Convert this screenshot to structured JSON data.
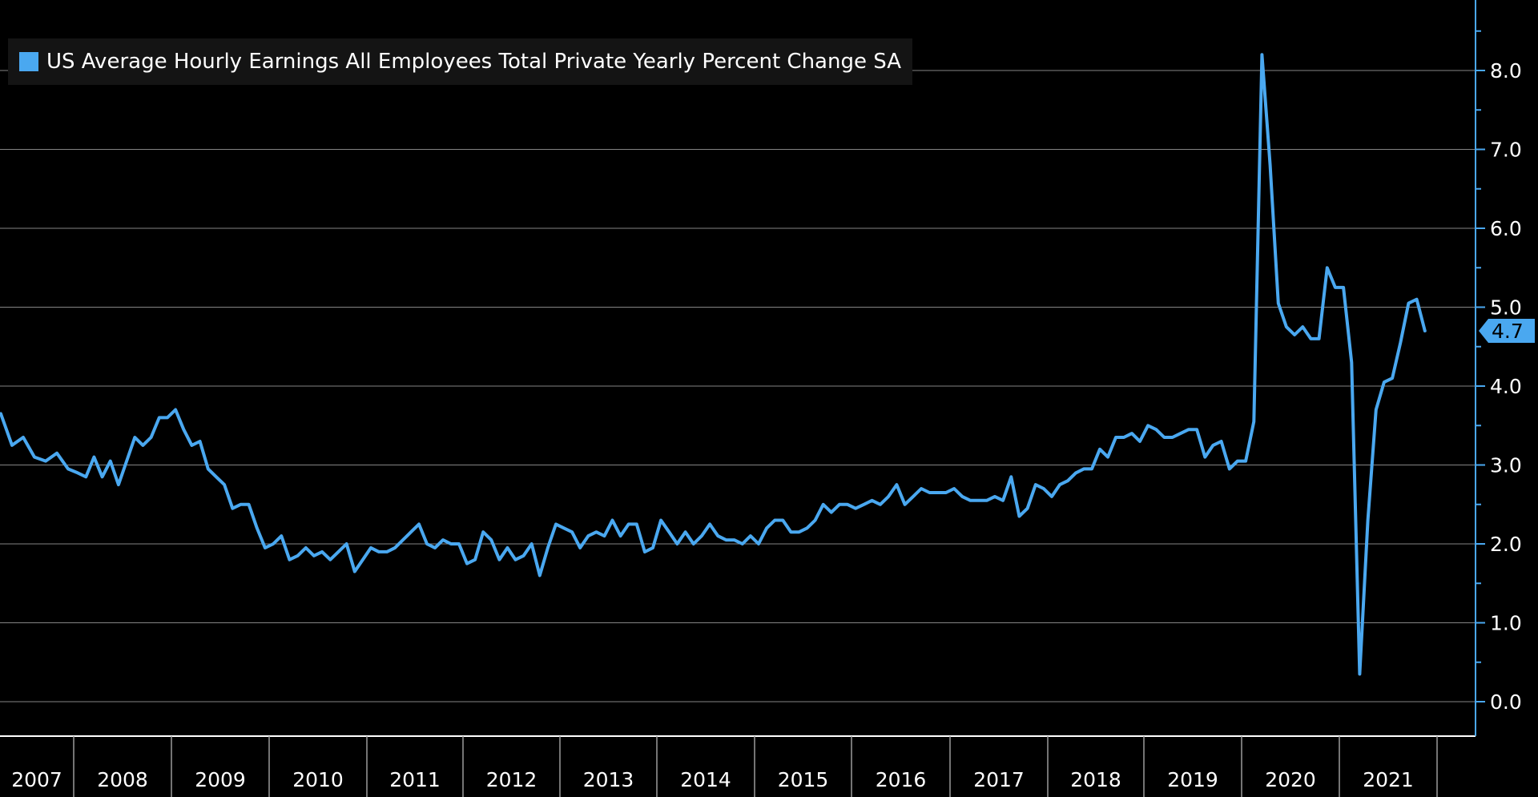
{
  "colors": {
    "background": "#000000",
    "line": "#4aa8f0",
    "grid": "#b0b0b0",
    "axis": "#4aa8f0",
    "text": "#ffffff",
    "legend_bg": "#141414"
  },
  "chart_data": {
    "type": "line",
    "title": "",
    "legend": {
      "placement": "top-left",
      "entries": [
        "US Average Hourly Earnings All Employees Total Private Yearly Percent Change SA"
      ]
    },
    "xlabel": "",
    "ylabel": "",
    "ylim": [
      0,
      8
    ],
    "y_ticks": [
      "0.0",
      "1.0",
      "2.0",
      "3.0",
      "4.0",
      "5.0",
      "6.0",
      "7.0",
      "8.0"
    ],
    "x_ticks": [
      "2007",
      "2008",
      "2009",
      "2010",
      "2011",
      "2012",
      "2013",
      "2014",
      "2015",
      "2016",
      "2017",
      "2018",
      "2019",
      "2020",
      "2021"
    ],
    "last_value_label": "4.7",
    "grid": true,
    "series": [
      {
        "name": "US Average Hourly Earnings All Employees Total Private Yearly Percent Change SA",
        "x": [
          "2007-03",
          "2007-04",
          "2007-05",
          "2007-06",
          "2007-07",
          "2007-08",
          "2007-09",
          "2007-10",
          "2007-11",
          "2007-12",
          "2008-01",
          "2008-02",
          "2008-03",
          "2008-04",
          "2008-05",
          "2008-06",
          "2008-07",
          "2008-08",
          "2008-09",
          "2008-10",
          "2008-11",
          "2008-12",
          "2009-01",
          "2009-02",
          "2009-03",
          "2009-04",
          "2009-05",
          "2009-06",
          "2009-07",
          "2009-08",
          "2009-09",
          "2009-10",
          "2009-11",
          "2009-12",
          "2010-01",
          "2010-02",
          "2010-03",
          "2010-04",
          "2010-05",
          "2010-06",
          "2010-07",
          "2010-08",
          "2010-09",
          "2010-10",
          "2010-11",
          "2010-12",
          "2011-01",
          "2011-02",
          "2011-03",
          "2011-04",
          "2011-05",
          "2011-06",
          "2011-07",
          "2011-08",
          "2011-09",
          "2011-10",
          "2011-11",
          "2011-12",
          "2012-01",
          "2012-02",
          "2012-03",
          "2012-04",
          "2012-05",
          "2012-06",
          "2012-07",
          "2012-08",
          "2012-09",
          "2012-10",
          "2012-11",
          "2012-12",
          "2013-01",
          "2013-02",
          "2013-03",
          "2013-04",
          "2013-05",
          "2013-06",
          "2013-07",
          "2013-08",
          "2013-09",
          "2013-10",
          "2013-11",
          "2013-12",
          "2014-01",
          "2014-02",
          "2014-03",
          "2014-04",
          "2014-05",
          "2014-06",
          "2014-07",
          "2014-08",
          "2014-09",
          "2014-10",
          "2014-11",
          "2014-12",
          "2015-01",
          "2015-02",
          "2015-03",
          "2015-04",
          "2015-05",
          "2015-06",
          "2015-07",
          "2015-08",
          "2015-09",
          "2015-10",
          "2015-11",
          "2015-12",
          "2016-01",
          "2016-02",
          "2016-03",
          "2016-04",
          "2016-05",
          "2016-06",
          "2016-07",
          "2016-08",
          "2016-09",
          "2016-10",
          "2016-11",
          "2016-12",
          "2017-01",
          "2017-02",
          "2017-03",
          "2017-04",
          "2017-05",
          "2017-06",
          "2017-07",
          "2017-08",
          "2017-09",
          "2017-10",
          "2017-11",
          "2017-12",
          "2018-01",
          "2018-02",
          "2018-03",
          "2018-04",
          "2018-05",
          "2018-06",
          "2018-07",
          "2018-08",
          "2018-09",
          "2018-10",
          "2018-11",
          "2018-12",
          "2019-01",
          "2019-02",
          "2019-03",
          "2019-04",
          "2019-05",
          "2019-06",
          "2019-07",
          "2019-08",
          "2019-09",
          "2019-10",
          "2019-11",
          "2019-12",
          "2020-01",
          "2020-02",
          "2020-03",
          "2020-04",
          "2020-05",
          "2020-06",
          "2020-07",
          "2020-08",
          "2020-09",
          "2020-10",
          "2020-11",
          "2020-12",
          "2021-01",
          "2021-02",
          "2021-03",
          "2021-04",
          "2021-05",
          "2021-06",
          "2021-07",
          "2021-08",
          "2021-09",
          "2021-10",
          "2021-11"
        ],
        "values": [
          3.4,
          3.1,
          3.55,
          3.65,
          3.25,
          3.35,
          3.1,
          3.05,
          3.15,
          2.95,
          2.9,
          2.85,
          3.1,
          2.85,
          3.05,
          2.75,
          3.05,
          3.35,
          3.25,
          3.35,
          3.6,
          3.6,
          3.7,
          3.45,
          3.25,
          3.3,
          2.95,
          2.85,
          2.75,
          2.45,
          2.5,
          2.5,
          2.2,
          1.95,
          2.0,
          2.1,
          1.8,
          1.85,
          1.95,
          1.85,
          1.9,
          1.8,
          1.9,
          2.0,
          1.65,
          1.8,
          1.95,
          1.9,
          1.9,
          1.95,
          2.05,
          2.15,
          2.25,
          2.0,
          1.95,
          2.05,
          2.0,
          2.0,
          1.75,
          1.8,
          2.15,
          2.05,
          1.8,
          1.95,
          1.8,
          1.85,
          2.0,
          1.6,
          1.95,
          2.25,
          2.2,
          2.15,
          1.95,
          2.1,
          2.15,
          2.1,
          2.3,
          2.1,
          2.25,
          2.25,
          1.9,
          1.95,
          2.3,
          2.15,
          2.0,
          2.15,
          2.0,
          2.1,
          2.25,
          2.1,
          2.05,
          2.05,
          2.0,
          2.1,
          2.0,
          2.2,
          2.3,
          2.3,
          2.15,
          2.15,
          2.2,
          2.3,
          2.5,
          2.4,
          2.5,
          2.5,
          2.45,
          2.5,
          2.55,
          2.5,
          2.6,
          2.75,
          2.5,
          2.6,
          2.7,
          2.65,
          2.65,
          2.65,
          2.7,
          2.6,
          2.55,
          2.55,
          2.55,
          2.6,
          2.55,
          2.85,
          2.35,
          2.45,
          2.75,
          2.7,
          2.6,
          2.75,
          2.8,
          2.9,
          2.95,
          2.95,
          3.2,
          3.1,
          3.35,
          3.35,
          3.4,
          3.3,
          3.5,
          3.45,
          3.35,
          3.35,
          3.4,
          3.45,
          3.45,
          3.1,
          3.25,
          3.3,
          2.95,
          3.05,
          3.05,
          3.55,
          8.2,
          6.8,
          5.05,
          4.75,
          4.65,
          4.75,
          4.6,
          4.6,
          5.5,
          5.25,
          5.25,
          4.3,
          0.35,
          2.3,
          3.7,
          4.05,
          4.1,
          4.55,
          5.05,
          5.1,
          4.7
        ]
      }
    ]
  }
}
